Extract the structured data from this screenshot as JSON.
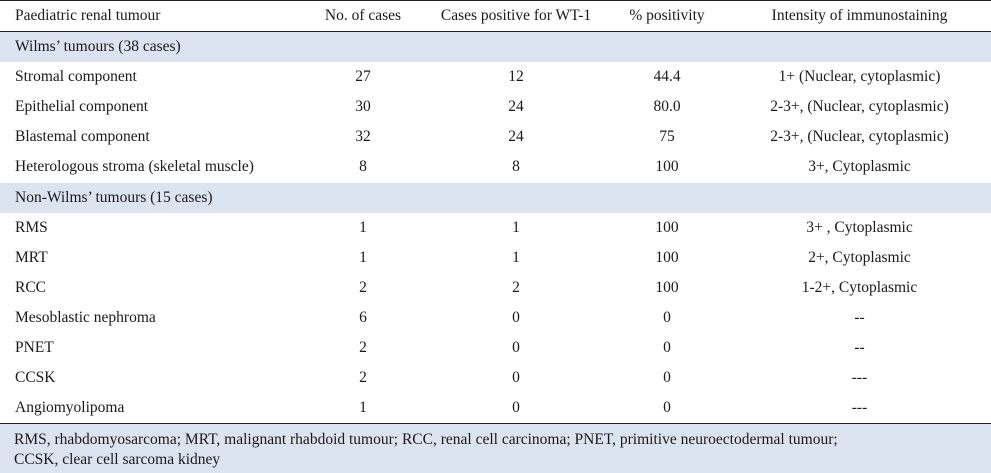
{
  "table": {
    "headers": [
      "Paediatric renal tumour",
      "No. of cases",
      "Cases positive for WT-1",
      "% positivity",
      "Intensity of immunostaining"
    ],
    "sections": [
      {
        "title": "Wilms’ tumours (38 cases)",
        "rows": [
          [
            "Stromal component",
            "27",
            "12",
            "44.4",
            "1+ (Nuclear, cytoplasmic)"
          ],
          [
            "Epithelial component",
            "30",
            "24",
            "80.0",
            "2-3+, (Nuclear, cytoplasmic)"
          ],
          [
            "Blastemal component",
            "32",
            "24",
            "75",
            "2-3+, (Nuclear, cytoplasmic)"
          ],
          [
            "Heterologous stroma (skeletal muscle)",
            "8",
            "8",
            "100",
            "3+, Cytoplasmic"
          ]
        ]
      },
      {
        "title": "Non-Wilms’ tumours (15 cases)",
        "rows": [
          [
            "RMS",
            "1",
            "1",
            "100",
            "3+ , Cytoplasmic"
          ],
          [
            "MRT",
            "1",
            "1",
            "100",
            "2+, Cytoplasmic"
          ],
          [
            "RCC",
            "2",
            "2",
            "100",
            "1-2+, Cytoplasmic"
          ],
          [
            "Mesoblastic nephroma",
            "6",
            "0",
            "0",
            "--"
          ],
          [
            "PNET",
            "2",
            "0",
            "0",
            "--"
          ],
          [
            "CCSK",
            "2",
            "0",
            "0",
            "---"
          ],
          [
            "Angiomyolipoma",
            "1",
            "0",
            "0",
            "---"
          ]
        ]
      }
    ]
  },
  "footnote": {
    "line1": "RMS, rhabdomyosarcoma; MRT, malignant rhabdoid tumour; RCC, renal cell carcinoma; PNET, primitive neuroectodermal tumour;",
    "line2": "CCSK, clear cell sarcoma kidney"
  }
}
